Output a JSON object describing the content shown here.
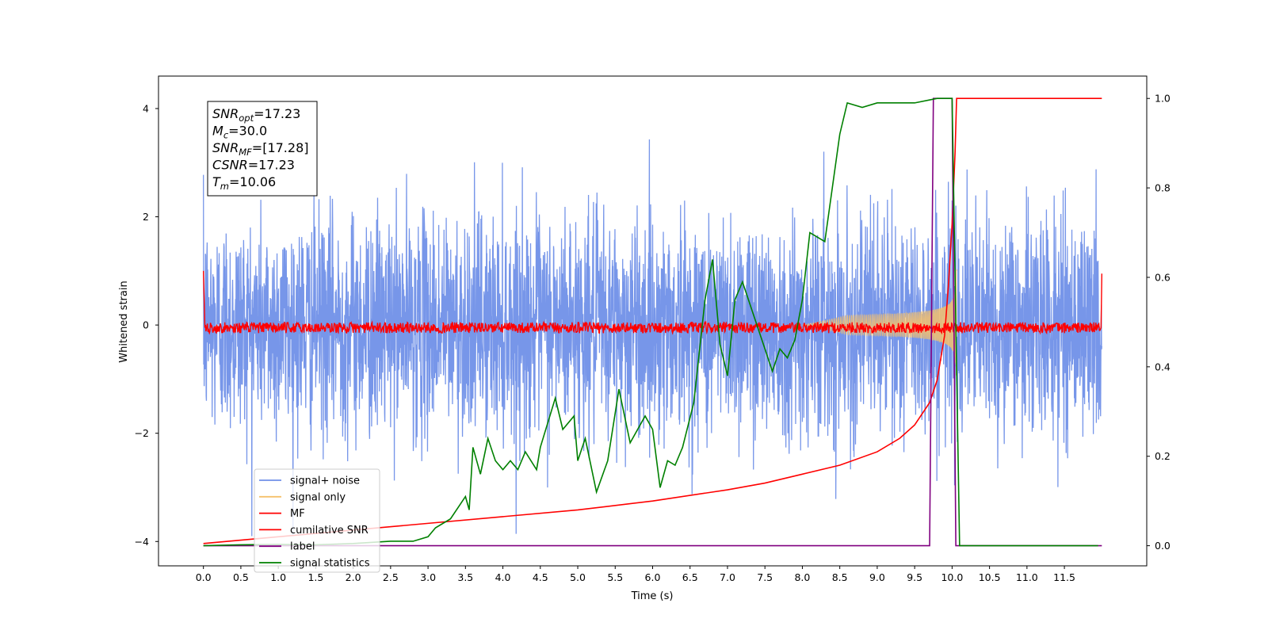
{
  "chart_data": {
    "type": "line",
    "xlabel": "Time (s)",
    "ylabel": "Whitened strain",
    "xlim": [
      -0.6,
      12.6
    ],
    "ylim": [
      -4.45,
      4.6
    ],
    "y2lim": [
      -0.045,
      1.05
    ],
    "x_ticks": [
      "0.0",
      "0.5",
      "1.0",
      "1.5",
      "2.0",
      "2.5",
      "3.0",
      "3.5",
      "4.0",
      "4.5",
      "5.0",
      "5.5",
      "6.0",
      "6.5",
      "7.0",
      "7.5",
      "8.0",
      "8.5",
      "9.0",
      "9.5",
      "10.0",
      "10.5",
      "11.0",
      "11.5"
    ],
    "y_ticks": [
      "4",
      "2",
      "0",
      "−2",
      "−4"
    ],
    "y2_ticks": [
      "1.0",
      "0.8",
      "0.6",
      "0.4",
      "0.2",
      "0.0"
    ],
    "annotation": [
      {
        "base": "SNR",
        "sub": "opt",
        "value": "=17.23"
      },
      {
        "base": "M",
        "sub": "c",
        "value": "=30.0"
      },
      {
        "base": "SNR",
        "sub": "MF",
        "value": "=[17.28]"
      },
      {
        "base": "CSNR",
        "sub": "",
        "value": "=17.23"
      },
      {
        "base": "T",
        "sub": "m",
        "value": "=10.06"
      }
    ],
    "legend_position": "lower-left",
    "series": [
      {
        "name": "signal+ noise",
        "color": "#7090e8",
        "axis": "left",
        "kind": "noise",
        "t_start": 0.0,
        "t_end": 12.0,
        "sigma": 1.0,
        "max_abs": 3.9
      },
      {
        "name": "signal only",
        "color": "#f5c16c",
        "axis": "left",
        "kind": "chirp",
        "t_start": 0.0,
        "t_merger": 10.06,
        "amplitude_peak": 1.9
      },
      {
        "name": "MF",
        "color": "#ff0000",
        "axis": "left",
        "kind": "mf",
        "t_start": 0.0,
        "t_end": 12.0,
        "level": -0.05,
        "spread": 0.1,
        "start_value": 1.0,
        "end_value": 0.95
      },
      {
        "name": "cumilative SNR",
        "color": "#ff0000",
        "axis": "right",
        "points": [
          [
            0.0,
            0.005
          ],
          [
            1.0,
            0.02
          ],
          [
            2.0,
            0.035
          ],
          [
            3.0,
            0.05
          ],
          [
            4.0,
            0.065
          ],
          [
            5.0,
            0.08
          ],
          [
            6.0,
            0.1
          ],
          [
            7.0,
            0.125
          ],
          [
            7.5,
            0.14
          ],
          [
            8.0,
            0.16
          ],
          [
            8.5,
            0.18
          ],
          [
            9.0,
            0.21
          ],
          [
            9.3,
            0.24
          ],
          [
            9.5,
            0.27
          ],
          [
            9.7,
            0.32
          ],
          [
            9.8,
            0.37
          ],
          [
            9.9,
            0.47
          ],
          [
            9.95,
            0.58
          ],
          [
            10.0,
            0.72
          ],
          [
            10.04,
            0.88
          ],
          [
            10.06,
            1.0
          ],
          [
            12.0,
            1.0
          ]
        ]
      },
      {
        "name": "label",
        "color": "#800080",
        "axis": "right",
        "points": [
          [
            0.0,
            0.0
          ],
          [
            9.7,
            0.0
          ],
          [
            9.75,
            1.0
          ],
          [
            10.0,
            1.0
          ],
          [
            10.05,
            0.0
          ],
          [
            12.0,
            0.0
          ]
        ]
      },
      {
        "name": "signal statistics",
        "color": "#008000",
        "axis": "right",
        "points": [
          [
            0.0,
            0.0
          ],
          [
            0.5,
            0.002
          ],
          [
            1.0,
            0.003
          ],
          [
            1.5,
            0.002
          ],
          [
            2.0,
            0.005
          ],
          [
            2.5,
            0.01
          ],
          [
            2.8,
            0.01
          ],
          [
            3.0,
            0.02
          ],
          [
            3.1,
            0.04
          ],
          [
            3.3,
            0.06
          ],
          [
            3.5,
            0.11
          ],
          [
            3.55,
            0.08
          ],
          [
            3.6,
            0.22
          ],
          [
            3.7,
            0.16
          ],
          [
            3.8,
            0.24
          ],
          [
            3.9,
            0.19
          ],
          [
            4.0,
            0.17
          ],
          [
            4.1,
            0.19
          ],
          [
            4.2,
            0.17
          ],
          [
            4.3,
            0.21
          ],
          [
            4.45,
            0.17
          ],
          [
            4.5,
            0.22
          ],
          [
            4.7,
            0.33
          ],
          [
            4.8,
            0.26
          ],
          [
            4.95,
            0.29
          ],
          [
            5.0,
            0.19
          ],
          [
            5.1,
            0.24
          ],
          [
            5.25,
            0.12
          ],
          [
            5.4,
            0.19
          ],
          [
            5.55,
            0.35
          ],
          [
            5.7,
            0.23
          ],
          [
            5.9,
            0.29
          ],
          [
            6.0,
            0.26
          ],
          [
            6.1,
            0.13
          ],
          [
            6.2,
            0.19
          ],
          [
            6.3,
            0.18
          ],
          [
            6.4,
            0.22
          ],
          [
            6.55,
            0.32
          ],
          [
            6.7,
            0.55
          ],
          [
            6.8,
            0.64
          ],
          [
            6.9,
            0.45
          ],
          [
            7.0,
            0.38
          ],
          [
            7.1,
            0.55
          ],
          [
            7.2,
            0.59
          ],
          [
            7.3,
            0.54
          ],
          [
            7.5,
            0.44
          ],
          [
            7.6,
            0.39
          ],
          [
            7.7,
            0.44
          ],
          [
            7.8,
            0.42
          ],
          [
            7.9,
            0.46
          ],
          [
            8.0,
            0.55
          ],
          [
            8.1,
            0.7
          ],
          [
            8.3,
            0.68
          ],
          [
            8.5,
            0.92
          ],
          [
            8.6,
            0.99
          ],
          [
            8.8,
            0.98
          ],
          [
            9.0,
            0.99
          ],
          [
            9.2,
            0.99
          ],
          [
            9.5,
            0.99
          ],
          [
            9.8,
            1.0
          ],
          [
            10.0,
            1.0
          ],
          [
            10.05,
            0.5
          ],
          [
            10.1,
            0.0
          ],
          [
            10.5,
            0.0
          ],
          [
            11.0,
            0.0
          ],
          [
            11.95,
            0.0
          ]
        ]
      }
    ]
  }
}
